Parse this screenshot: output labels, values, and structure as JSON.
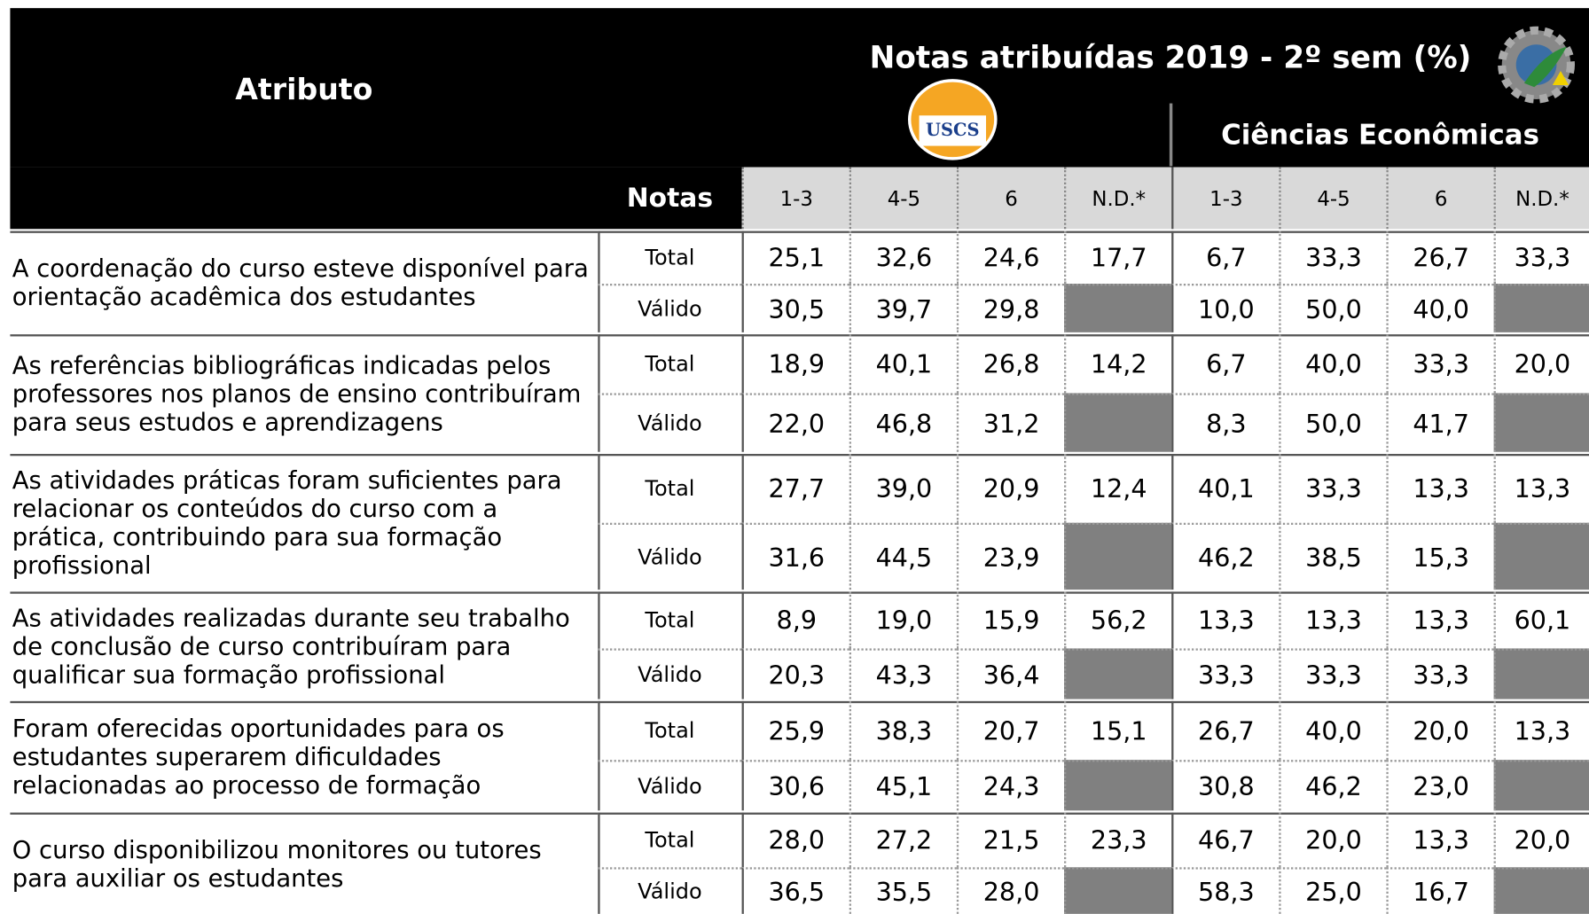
{
  "header": {
    "attribute": "Atributo",
    "title": "Notas atribuídas 2019 - 2º sem (%)",
    "logo": "USCS",
    "group": "Ciências Econômicas",
    "notes": "Notas",
    "columns": [
      "1-3",
      "4-5",
      "6",
      "N.D.*",
      "1-3",
      "4-5",
      "6",
      "N.D.*"
    ]
  },
  "rows": [
    {
      "attribute": "A coordenação do curso esteve disponível para orientação acadêmica dos estudantes",
      "total": {
        "label": "Total",
        "values": [
          "25,1",
          "32,6",
          "24,6",
          "17,7",
          "6,7",
          "33,3",
          "26,7",
          "33,3"
        ]
      },
      "valid": {
        "label": "Válido",
        "values": [
          "30,5",
          "39,7",
          "29,8",
          "10,0",
          "50,0",
          "40,0"
        ]
      }
    },
    {
      "attribute": "As referências bibliográficas indicadas pelos professores nos planos de ensino contribuíram para seus estudos e aprendizagens",
      "total": {
        "label": "Total",
        "values": [
          "18,9",
          "40,1",
          "26,8",
          "14,2",
          "6,7",
          "40,0",
          "33,3",
          "20,0"
        ]
      },
      "valid": {
        "label": "Válido",
        "values": [
          "22,0",
          "46,8",
          "31,2",
          "8,3",
          "50,0",
          "41,7"
        ]
      }
    },
    {
      "attribute": "As atividades práticas foram suficientes para relacionar os conteúdos do curso com a prática, contribuindo para sua formação profissional",
      "total": {
        "label": "Total",
        "values": [
          "27,7",
          "39,0",
          "20,9",
          "12,4",
          "40,1",
          "33,3",
          "13,3",
          "13,3"
        ]
      },
      "valid": {
        "label": "Válido",
        "values": [
          "31,6",
          "44,5",
          "23,9",
          "46,2",
          "38,5",
          "15,3"
        ]
      }
    },
    {
      "attribute": "As atividades realizadas durante seu trabalho de conclusão de curso contribuíram para qualificar sua formação profissional",
      "total": {
        "label": "Total",
        "values": [
          "8,9",
          "19,0",
          "15,9",
          "56,2",
          "13,3",
          "13,3",
          "13,3",
          "60,1"
        ]
      },
      "valid": {
        "label": "Válido",
        "values": [
          "20,3",
          "43,3",
          "36,4",
          "33,3",
          "33,3",
          "33,3"
        ]
      }
    },
    {
      "attribute": "Foram oferecidas oportunidades para os estudantes superarem dificuldades relacionadas ao processo de formação",
      "total": {
        "label": "Total",
        "values": [
          "25,9",
          "38,3",
          "20,7",
          "15,1",
          "26,7",
          "40,0",
          "20,0",
          "13,3"
        ]
      },
      "valid": {
        "label": "Válido",
        "values": [
          "30,6",
          "45,1",
          "24,3",
          "30,8",
          "46,2",
          "23,0"
        ]
      }
    },
    {
      "attribute": "O curso disponibilizou monitores ou tutores para auxiliar os estudantes",
      "total": {
        "label": "Total",
        "values": [
          "28,0",
          "27,2",
          "21,5",
          "23,3",
          "46,7",
          "20,0",
          "13,3",
          "20,0"
        ]
      },
      "valid": {
        "label": "Válido",
        "values": [
          "36,5",
          "35,5",
          "28,0",
          "58,3",
          "25,0",
          "16,7"
        ]
      }
    }
  ]
}
